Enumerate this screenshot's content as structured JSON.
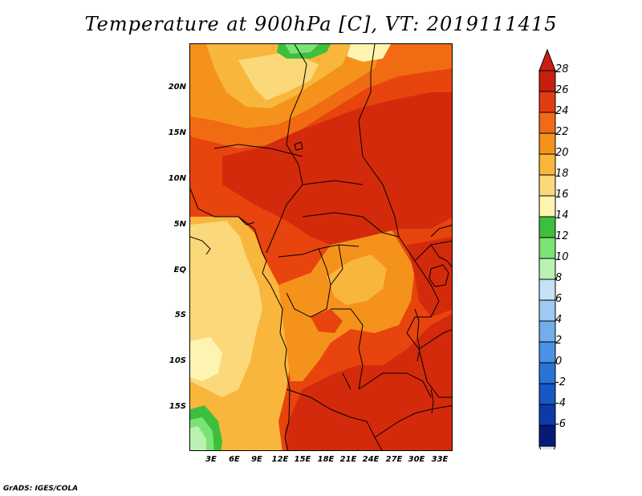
{
  "title": "Temperature at 900hPa [C], VT: 2019111415",
  "credit": "GrADS: IGES/COLA",
  "map": {
    "latitude_labels": [
      "20N",
      "15N",
      "10N",
      "5N",
      "EQ",
      "5S",
      "10S",
      "15S"
    ],
    "longitude_labels": [
      "3E",
      "6E",
      "9E",
      "12E",
      "15E",
      "18E",
      "21E",
      "24E",
      "27E",
      "30E",
      "33E"
    ],
    "colors": {
      "c28": "#d42a0c",
      "c26": "#e8440e",
      "c24": "#f16b13",
      "c22": "#f5921c",
      "c20": "#f9b63c",
      "c18": "#fbd87a",
      "c16": "#fdf4b2",
      "c14": "#3dbf3d",
      "c12": "#7be374",
      "c10": "#b9f2b2"
    }
  },
  "colorbar": {
    "levels": [
      "28",
      "26",
      "24",
      "22",
      "20",
      "18",
      "16",
      "14",
      "12",
      "10",
      "8",
      "6",
      "4",
      "2",
      "0",
      "-2",
      "-4",
      "-6"
    ],
    "colors_top_to_bottom": [
      "#c81e10",
      "#e23d10",
      "#f06a18",
      "#f5921c",
      "#f9b63c",
      "#fbd87a",
      "#fdf4b2",
      "#3dbf3d",
      "#7be374",
      "#b9f2b2",
      "#c6e2f7",
      "#9ec9f0",
      "#72aeea",
      "#4a92e2",
      "#2974d6",
      "#1658c4",
      "#0c3aa8",
      "#061a78"
    ],
    "top_triangle_color": "#c81e10",
    "bottom_triangle_color": "#e6e6f8"
  }
}
